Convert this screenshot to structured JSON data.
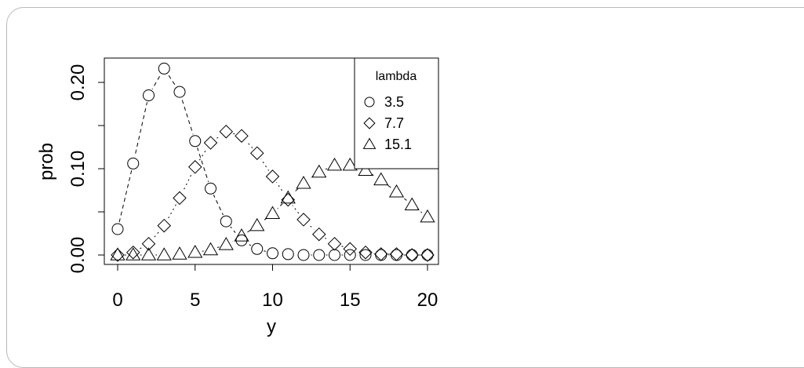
{
  "chart_data": {
    "type": "scatter",
    "title": "",
    "xlabel": "y",
    "ylabel": "prob",
    "xlim": [
      0,
      20
    ],
    "ylim": [
      0,
      0.22
    ],
    "x_ticks": [
      "0",
      "5",
      "10",
      "15",
      "20"
    ],
    "y_ticks": [
      "0.00",
      "0.10",
      "0.20"
    ],
    "grid": false,
    "legend": {
      "title": "lambda",
      "position": "top-right"
    },
    "x": [
      0,
      1,
      2,
      3,
      4,
      5,
      6,
      7,
      8,
      9,
      10,
      11,
      12,
      13,
      14,
      15,
      16,
      17,
      18,
      19,
      20
    ],
    "series": [
      {
        "name": "3.5",
        "marker": "circle",
        "line": "dashed",
        "values": [
          0.03,
          0.106,
          0.185,
          0.216,
          0.189,
          0.132,
          0.077,
          0.039,
          0.017,
          0.007,
          0.002,
          0.001,
          0.0,
          0.0,
          0.0,
          0.0,
          0.0,
          0.0,
          0.0,
          0.0,
          0.0
        ]
      },
      {
        "name": "7.7",
        "marker": "diamond",
        "line": "dotted",
        "values": [
          0.0,
          0.003,
          0.013,
          0.034,
          0.066,
          0.102,
          0.13,
          0.143,
          0.138,
          0.118,
          0.091,
          0.064,
          0.041,
          0.024,
          0.013,
          0.007,
          0.003,
          0.001,
          0.001,
          0.0,
          0.0
        ]
      },
      {
        "name": "15.1",
        "marker": "triangle",
        "line": "dashed",
        "values": [
          0.0,
          0.0,
          0.0,
          0.0,
          0.001,
          0.003,
          0.006,
          0.012,
          0.022,
          0.034,
          0.048,
          0.066,
          0.083,
          0.096,
          0.104,
          0.104,
          0.098,
          0.087,
          0.073,
          0.058,
          0.044
        ]
      }
    ]
  }
}
